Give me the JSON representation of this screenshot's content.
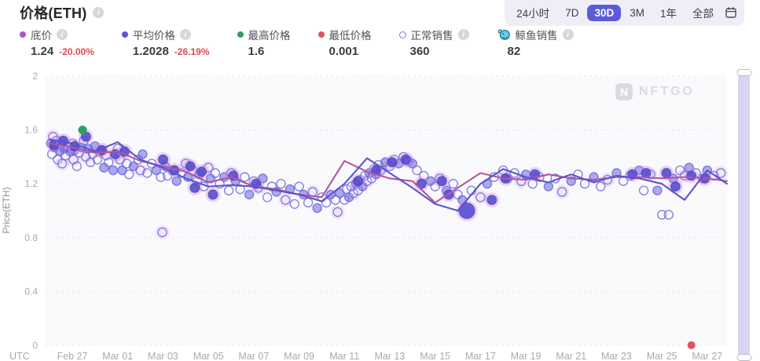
{
  "header": {
    "title": "价格(ETH)"
  },
  "time_selector": {
    "options": [
      {
        "label": "24小时",
        "active": false
      },
      {
        "label": "7D",
        "active": false
      },
      {
        "label": "30D",
        "active": true
      },
      {
        "label": "3M",
        "active": false
      },
      {
        "label": "1年",
        "active": false
      },
      {
        "label": "全部",
        "active": false
      }
    ],
    "calendar_icon": "calendar-icon"
  },
  "legend": {
    "items": [
      {
        "label": "底价",
        "value": "1.24",
        "change": "-20.00%",
        "color": "#ab57c8",
        "marker": "dot",
        "has_info": true
      },
      {
        "label": "平均价格",
        "value": "1.2028",
        "change": "-26.19%",
        "color": "#5b56d6",
        "marker": "dot",
        "has_info": true
      },
      {
        "label": "最高价格",
        "value": "1.6",
        "change": "",
        "color": "#2e9e62",
        "marker": "dot",
        "has_info": false
      },
      {
        "label": "最低价格",
        "value": "0.001",
        "change": "",
        "color": "#e0525f",
        "marker": "dot",
        "has_info": false
      },
      {
        "label": "正常销售",
        "value": "360",
        "change": "",
        "color": "#7b76e3",
        "marker": "ring",
        "has_info": true
      },
      {
        "label": "鲸鱼销售",
        "value": "82",
        "change": "",
        "color": "#63cbe9",
        "marker": "whale-icon",
        "has_info": true
      }
    ]
  },
  "watermark": {
    "logo_letter": "N",
    "text": "NFTGO"
  },
  "chart_data": {
    "type": "line",
    "title": "价格(ETH)",
    "xlabel": "",
    "ylabel": "Price(ETH)",
    "utc_label": "UTC",
    "ylim": [
      0,
      2
    ],
    "yticks": [
      0,
      0.4,
      0.8,
      1.2,
      1.6,
      2
    ],
    "ytick_labels": [
      "0",
      "0.4",
      "0.8",
      "1.2",
      "1.6",
      "2"
    ],
    "grid": "horizontal-dashed",
    "legend_position": "top",
    "day_zero": "Feb 26",
    "x_domain_days": [
      0,
      30
    ],
    "xticks": [
      {
        "day": 1,
        "label": "Feb 27"
      },
      {
        "day": 3,
        "label": "Mar 01"
      },
      {
        "day": 5,
        "label": "Mar 03"
      },
      {
        "day": 7,
        "label": "Mar 05"
      },
      {
        "day": 9,
        "label": "Mar 07"
      },
      {
        "day": 11,
        "label": "Mar 09"
      },
      {
        "day": 13,
        "label": "Mar 11"
      },
      {
        "day": 15,
        "label": "Mar 13"
      },
      {
        "day": 17,
        "label": "Mar 15"
      },
      {
        "day": 19,
        "label": "Mar 17"
      },
      {
        "day": 21,
        "label": "Mar 19"
      },
      {
        "day": 23,
        "label": "Mar 21"
      },
      {
        "day": 25,
        "label": "Mar 23"
      },
      {
        "day": 27,
        "label": "Mar 25"
      },
      {
        "day": 29,
        "label": "Mar 27"
      }
    ],
    "series": [
      {
        "name": "底价",
        "data_name": "floor-price-line",
        "color": "#b1569f",
        "values": [
          1.5,
          1.47,
          1.43,
          1.44,
          1.37,
          1.33,
          1.29,
          1.21,
          1.25,
          1.18,
          1.16,
          1.12,
          1.1,
          1.37,
          1.29,
          1.24,
          1.22,
          1.06,
          1.17,
          1.28,
          1.24,
          1.23,
          1.27,
          1.24,
          1.23,
          1.25,
          1.25,
          1.24,
          1.25,
          1.24,
          1.22
        ]
      },
      {
        "name": "平均价格",
        "data_name": "average-price-line",
        "color": "#5a54cd",
        "values": [
          1.53,
          1.5,
          1.44,
          1.51,
          1.38,
          1.32,
          1.24,
          1.18,
          1.19,
          1.18,
          1.15,
          1.12,
          1.07,
          1.2,
          1.39,
          1.28,
          1.17,
          1.05,
          1.0,
          1.2,
          1.31,
          1.25,
          1.21,
          1.27,
          1.21,
          1.26,
          1.24,
          1.2,
          1.08,
          1.3,
          1.2
        ]
      }
    ],
    "scatter": {
      "normal_label": "正常销售",
      "whale_label": "鲸鱼销售",
      "normal": [
        [
          0.05,
          1.5
        ],
        [
          0.1,
          1.42
        ],
        [
          0.15,
          1.55
        ],
        [
          0.2,
          1.47
        ],
        [
          0.3,
          1.52
        ],
        [
          0.35,
          1.38
        ],
        [
          0.45,
          1.44
        ],
        [
          0.5,
          1.5
        ],
        [
          0.55,
          1.35
        ],
        [
          0.65,
          1.46
        ],
        [
          0.7,
          1.41
        ],
        [
          0.8,
          1.48
        ],
        [
          0.9,
          1.44
        ],
        [
          1.0,
          1.5
        ],
        [
          1.05,
          1.38
        ],
        [
          1.1,
          1.45
        ],
        [
          1.2,
          1.33
        ],
        [
          1.3,
          1.43
        ],
        [
          1.4,
          1.47
        ],
        [
          1.5,
          1.52
        ],
        [
          1.6,
          1.4
        ],
        [
          1.7,
          1.46
        ],
        [
          1.8,
          1.36
        ],
        [
          1.9,
          1.42
        ],
        [
          2.0,
          1.48
        ],
        [
          2.1,
          1.38
        ],
        [
          2.2,
          1.44
        ],
        [
          2.4,
          1.32
        ],
        [
          2.5,
          1.41
        ],
        [
          2.6,
          1.36
        ],
        [
          2.8,
          1.3
        ],
        [
          3.0,
          1.46
        ],
        [
          3.1,
          1.38
        ],
        [
          3.2,
          1.3
        ],
        [
          3.4,
          1.35
        ],
        [
          3.5,
          1.27
        ],
        [
          3.7,
          1.33
        ],
        [
          3.9,
          1.38
        ],
        [
          4.0,
          1.3
        ],
        [
          4.1,
          1.42
        ],
        [
          4.3,
          1.28
        ],
        [
          4.5,
          1.35
        ],
        [
          4.7,
          1.3
        ],
        [
          4.9,
          1.25
        ],
        [
          4.97,
          0.84
        ],
        [
          5.1,
          1.33
        ],
        [
          5.2,
          1.26
        ],
        [
          5.4,
          1.3
        ],
        [
          5.6,
          1.22
        ],
        [
          5.8,
          1.28
        ],
        [
          6.0,
          1.35
        ],
        [
          6.1,
          1.25
        ],
        [
          6.3,
          1.3
        ],
        [
          6.5,
          1.22
        ],
        [
          6.6,
          1.27
        ],
        [
          6.8,
          1.18
        ],
        [
          7.0,
          1.32
        ],
        [
          7.1,
          1.24
        ],
        [
          7.3,
          1.28
        ],
        [
          7.5,
          1.2
        ],
        [
          7.7,
          1.25
        ],
        [
          7.9,
          1.15
        ],
        [
          8.0,
          1.28
        ],
        [
          8.2,
          1.22
        ],
        [
          8.4,
          1.16
        ],
        [
          8.6,
          1.25
        ],
        [
          8.8,
          1.12
        ],
        [
          9.0,
          1.22
        ],
        [
          9.2,
          1.17
        ],
        [
          9.4,
          1.24
        ],
        [
          9.6,
          1.1
        ],
        [
          9.8,
          1.18
        ],
        [
          10.0,
          1.14
        ],
        [
          10.2,
          1.2
        ],
        [
          10.4,
          1.08
        ],
        [
          10.6,
          1.16
        ],
        [
          10.8,
          1.05
        ],
        [
          11.0,
          1.18
        ],
        [
          11.2,
          1.12
        ],
        [
          11.4,
          1.06
        ],
        [
          11.6,
          1.14
        ],
        [
          11.8,
          1.02
        ],
        [
          12.0,
          1.1
        ],
        [
          12.2,
          1.06
        ],
        [
          12.4,
          1.12
        ],
        [
          12.6,
          1.08
        ],
        [
          12.7,
          0.99
        ],
        [
          12.8,
          1.13
        ],
        [
          13.0,
          1.08
        ],
        [
          13.1,
          1.16
        ],
        [
          13.2,
          1.1
        ],
        [
          13.3,
          1.18
        ],
        [
          13.4,
          1.13
        ],
        [
          13.5,
          1.2
        ],
        [
          13.6,
          1.15
        ],
        [
          13.7,
          1.23
        ],
        [
          13.8,
          1.18
        ],
        [
          13.9,
          1.26
        ],
        [
          14.0,
          1.22
        ],
        [
          14.1,
          1.28
        ],
        [
          14.2,
          1.24
        ],
        [
          14.3,
          1.31
        ],
        [
          14.4,
          1.27
        ],
        [
          14.5,
          1.34
        ],
        [
          14.6,
          1.3
        ],
        [
          14.8,
          1.36
        ],
        [
          15.0,
          1.33
        ],
        [
          15.2,
          1.38
        ],
        [
          15.4,
          1.35
        ],
        [
          15.6,
          1.4
        ],
        [
          15.8,
          1.37
        ],
        [
          16.0,
          1.35
        ],
        [
          16.2,
          1.3
        ],
        [
          16.5,
          1.26
        ],
        [
          16.8,
          1.22
        ],
        [
          17.0,
          1.18
        ],
        [
          17.2,
          1.24
        ],
        [
          17.5,
          1.15
        ],
        [
          17.8,
          1.2
        ],
        [
          18.0,
          1.12
        ],
        [
          18.2,
          1.08
        ],
        [
          18.6,
          1.15
        ],
        [
          19.0,
          1.1
        ],
        [
          19.3,
          1.2
        ],
        [
          19.6,
          1.25
        ],
        [
          20.0,
          1.3
        ],
        [
          20.2,
          1.24
        ],
        [
          20.5,
          1.28
        ],
        [
          20.8,
          1.22
        ],
        [
          21.0,
          1.27
        ],
        [
          21.3,
          1.2
        ],
        [
          21.6,
          1.25
        ],
        [
          22.0,
          1.18
        ],
        [
          22.3,
          1.24
        ],
        [
          22.6,
          1.14
        ],
        [
          23.0,
          1.22
        ],
        [
          23.3,
          1.27
        ],
        [
          23.6,
          1.2
        ],
        [
          24.0,
          1.25
        ],
        [
          24.3,
          1.18
        ],
        [
          24.6,
          1.23
        ],
        [
          25.0,
          1.28
        ],
        [
          25.3,
          1.22
        ],
        [
          25.6,
          1.26
        ],
        [
          26.0,
          1.3
        ],
        [
          26.2,
          1.15
        ],
        [
          26.5,
          1.27
        ],
        [
          26.8,
          1.15
        ],
        [
          27.0,
          0.97
        ],
        [
          27.3,
          0.97
        ],
        [
          27.5,
          1.24
        ],
        [
          27.8,
          1.3
        ],
        [
          28.0,
          1.26
        ],
        [
          28.2,
          1.32
        ],
        [
          28.5,
          1.28
        ],
        [
          28.8,
          1.24
        ],
        [
          29.0,
          1.3
        ],
        [
          29.3,
          1.26
        ],
        [
          29.6,
          1.28
        ]
      ],
      "whale": [
        [
          0.2,
          1.49
        ],
        [
          0.6,
          1.52
        ],
        [
          1.1,
          1.48
        ],
        [
          1.6,
          1.55
        ],
        [
          2.3,
          1.45
        ],
        [
          2.9,
          1.42
        ],
        [
          3.3,
          1.44
        ],
        [
          5.0,
          1.38
        ],
        [
          5.5,
          1.3
        ],
        [
          6.2,
          1.33
        ],
        [
          6.4,
          1.17
        ],
        [
          6.7,
          1.29
        ],
        [
          7.2,
          1.12
        ],
        [
          8.1,
          1.26
        ],
        [
          9.1,
          1.2
        ],
        [
          13.6,
          1.22
        ],
        [
          14.4,
          1.3
        ],
        [
          15.1,
          1.36
        ],
        [
          15.7,
          1.38
        ],
        [
          16.4,
          1.2
        ],
        [
          17.3,
          1.22
        ],
        [
          17.6,
          1.12
        ],
        [
          18.4,
          1.0,
          10
        ],
        [
          19.5,
          1.08
        ],
        [
          20.1,
          1.24
        ],
        [
          21.4,
          1.27
        ],
        [
          25.7,
          1.27
        ],
        [
          26.3,
          1.28
        ],
        [
          27.2,
          1.28
        ],
        [
          27.6,
          1.18
        ],
        [
          28.3,
          1.26
        ],
        [
          28.9,
          1.24
        ]
      ]
    },
    "special_points": {
      "highest": {
        "label": "最高价格",
        "day": 1.45,
        "value": 1.6,
        "color": "#2e9e62"
      },
      "lowest": {
        "label": "最低价格",
        "day": 28.3,
        "value": 0.001,
        "color": "#e0525f"
      }
    }
  }
}
